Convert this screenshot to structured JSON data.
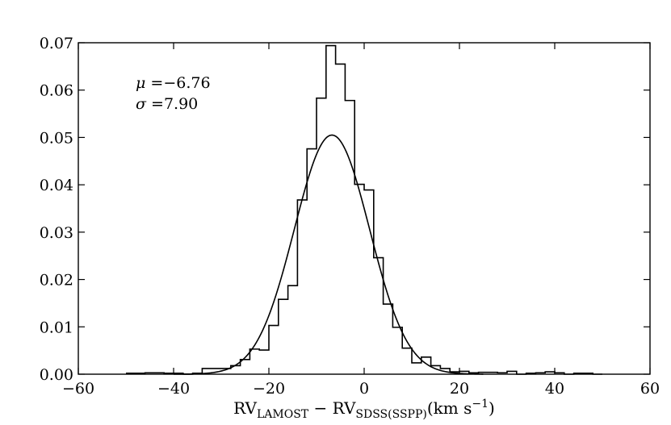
{
  "chart_data": {
    "type": "histogram",
    "title": "",
    "xlabel": {
      "parts": [
        {
          "text": "RV",
          "sub": false
        },
        {
          "text": "LAMOST",
          "sub": true
        },
        {
          "text": " − RV",
          "sub": false
        },
        {
          "text": "SDSS(SSPP)",
          "sub": true
        },
        {
          "text": "(km s",
          "sub": false
        },
        {
          "text": "−1",
          "sup": true
        },
        {
          "text": ")",
          "sub": false
        }
      ]
    },
    "ylabel": "",
    "xlim": [
      -60,
      60
    ],
    "ylim": [
      0,
      0.07
    ],
    "xticks": [
      -60,
      -40,
      -20,
      0,
      20,
      40,
      60
    ],
    "xtick_labels": [
      "−60",
      "−40",
      "−20",
      "0",
      "20",
      "40",
      "60"
    ],
    "yticks": [
      0,
      0.01,
      0.02,
      0.03,
      0.04,
      0.05,
      0.06,
      0.07
    ],
    "ytick_labels": [
      "0.00",
      "0.01",
      "0.02",
      "0.03",
      "0.04",
      "0.05",
      "0.06",
      "0.07"
    ],
    "grid": false,
    "annotations": [
      {
        "symbol": "μ",
        "text": " =−6.76"
      },
      {
        "symbol": "σ",
        "text": " =7.90"
      }
    ],
    "histogram": {
      "bin_edges": [
        -50,
        -48,
        -46,
        -44,
        -42,
        -40,
        -38,
        -36,
        -34,
        -32,
        -30,
        -28,
        -26,
        -24,
        -22,
        -20,
        -18,
        -16,
        -14,
        -12,
        -10,
        -8,
        -6,
        -4,
        -2,
        0,
        2,
        4,
        6,
        8,
        10,
        12,
        14,
        16,
        18,
        20,
        22,
        24,
        26,
        28,
        30,
        32,
        34,
        36,
        38,
        40,
        42,
        44,
        46,
        48,
        50
      ],
      "values": [
        0.0002,
        0.0002,
        0.0003,
        0.0003,
        0.0002,
        0.0002,
        0,
        0.0002,
        0.0012,
        0.0012,
        0.0012,
        0.0018,
        0.0031,
        0.0053,
        0.0051,
        0.0103,
        0.0158,
        0.0187,
        0.0368,
        0.0476,
        0.0583,
        0.0694,
        0.0655,
        0.0578,
        0.0401,
        0.0389,
        0.0246,
        0.0148,
        0.0099,
        0.0055,
        0.0024,
        0.0036,
        0.0018,
        0.0012,
        0.0005,
        0.0006,
        0.0003,
        0.0004,
        0.0004,
        0.0003,
        0.0006,
        0,
        0.0002,
        0.0003,
        0.0005,
        0.0003,
        0,
        0.0002,
        0.0002,
        0
      ]
    },
    "fit": {
      "type": "gaussian",
      "mu": -6.76,
      "sigma": 7.9,
      "peak": 0.0505
    }
  }
}
